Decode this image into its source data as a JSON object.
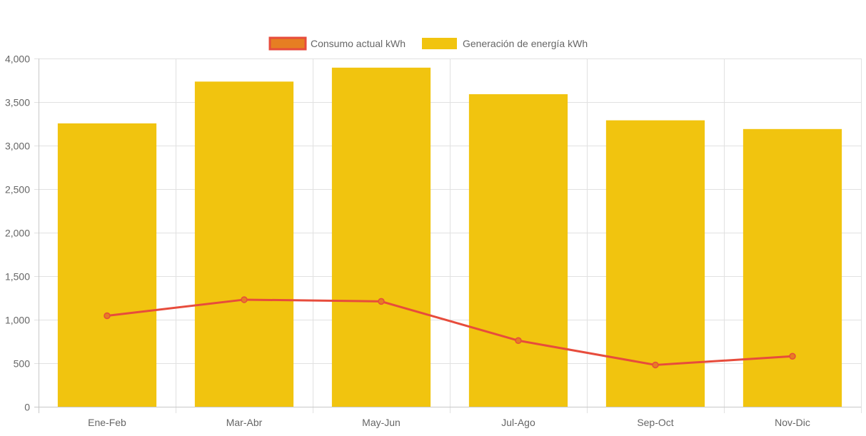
{
  "chart_data": {
    "type": "bar",
    "categories": [
      "Ene-Feb",
      "Mar-Abr",
      "May-Jun",
      "Jul-Ago",
      "Sep-Oct",
      "Nov-Dic"
    ],
    "series": [
      {
        "name": "Consumo actual kWh",
        "type": "line",
        "values": [
          1045,
          1230,
          1210,
          760,
          480,
          580
        ],
        "color": "#e74c3c",
        "fill": "#e67e22"
      },
      {
        "name": "Generación de energía kWh",
        "type": "bar",
        "values": [
          3255,
          3735,
          3895,
          3590,
          3290,
          3190
        ],
        "color": "#f1c40f"
      }
    ],
    "ylim": [
      0,
      4000
    ],
    "yticks": [
      0,
      500,
      1000,
      1500,
      2000,
      2500,
      3000,
      3500,
      4000
    ],
    "ytick_labels": [
      "0",
      "500",
      "1,000",
      "1,500",
      "2,000",
      "2,500",
      "3,000",
      "3,500",
      "4,000"
    ],
    "grid": true,
    "legend_position": "top-center"
  }
}
